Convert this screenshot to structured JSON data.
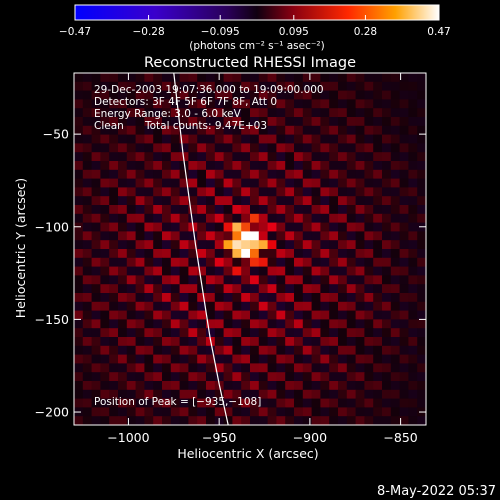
{
  "chart_data": {
    "type": "heatmap",
    "title": "Reconstructed RHESSI Image",
    "xlabel": "Heliocentric X (arcsec)",
    "ylabel": "Heliocentric Y (arcsec)",
    "xlim": [
      -1030,
      -836
    ],
    "ylim": [
      -207,
      -17
    ],
    "x_ticks": [
      -1000,
      -950,
      -900,
      -850
    ],
    "x_tick_labels": [
      "−1000",
      "−950",
      "−900",
      "−850"
    ],
    "y_ticks": [
      -50,
      -100,
      -150,
      -200
    ],
    "y_tick_labels": [
      "−50",
      "−100",
      "−150",
      "−200"
    ],
    "colorbar": {
      "min": -0.47,
      "max": 0.47,
      "ticks": [
        -0.47,
        -0.28,
        -0.095,
        0.095,
        0.28,
        0.47
      ],
      "tick_labels": [
        "−0.47",
        "−0.28",
        "−0.095",
        "0.095",
        "0.28",
        "0.47"
      ],
      "units_label": "(photons cm⁻² s⁻¹ asec⁻²)"
    },
    "peak": {
      "x": -935,
      "y": -108,
      "value": 0.47
    },
    "limb_points": [
      [
        -975,
        -17
      ],
      [
        -970,
        -60
      ],
      [
        -963,
        -110
      ],
      [
        -955,
        -160
      ],
      [
        -950,
        -185
      ],
      [
        -945,
        -207
      ]
    ],
    "annotations": {
      "time_range": "29-Dec-2003 19:07:36.000 to 19:09:00.000",
      "detectors": "Detectors: 3F 4F 5F 6F 7F 8F, Att 0",
      "energy": "Energy Range: 3.0 - 6.0 keV",
      "algorithm": "Clean",
      "counts": "Total counts: 9.47E+03",
      "peak_text": "Position of Peak = [−935,−108]"
    },
    "grid": false
  },
  "footer": {
    "date": "8-May-2022 05:37"
  },
  "colors": {
    "background": "#000000",
    "text": "#ffffff"
  }
}
